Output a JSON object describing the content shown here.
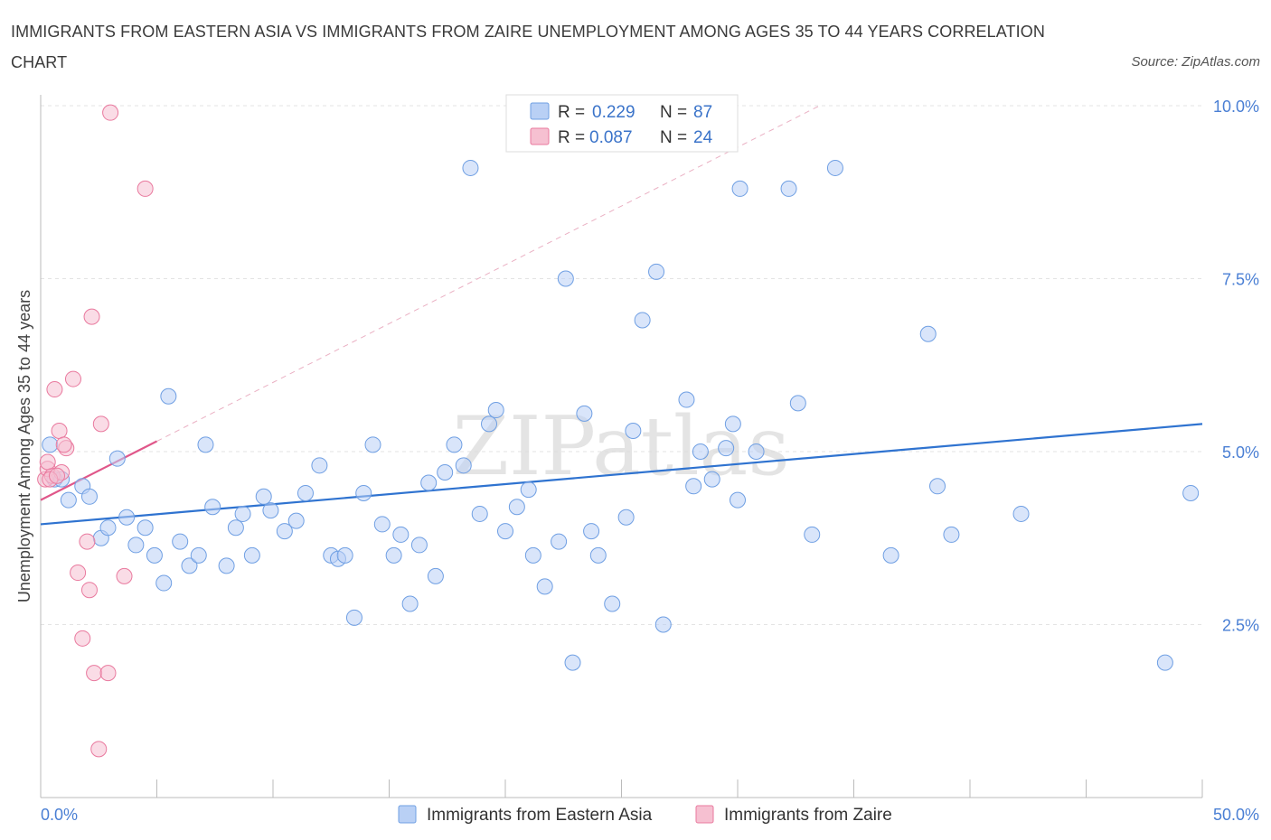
{
  "title": "IMMIGRANTS FROM EASTERN ASIA VS IMMIGRANTS FROM ZAIRE UNEMPLOYMENT AMONG AGES 35 TO 44 YEARS CORRELATION CHART",
  "source": "Source: ZipAtlas.com",
  "watermark": "ZIPatlas",
  "colors": {
    "blue": "#6f9fe3",
    "blue_fill": "#b9d0f5",
    "pink": "#e9799e",
    "pink_fill": "#f6c0d1",
    "blue_line": "#2f73d0",
    "pink_line": "#e0578a"
  },
  "legend": {
    "r_label": "R =",
    "n_label": "N =",
    "rows": [
      {
        "r": "0.229",
        "n": "87"
      },
      {
        "r": "0.087",
        "n": "24"
      }
    ]
  },
  "chart_data": {
    "type": "scatter",
    "xlabel": "",
    "ylabel": "Unemployment Among Ages 35 to 44 years",
    "xlim": [
      0,
      50
    ],
    "ylim": [
      0,
      10
    ],
    "x_tick_labels": [
      "0.0%",
      "50.0%"
    ],
    "y_ticks": [
      2.5,
      5.0,
      7.5,
      10.0
    ],
    "y_tick_labels": [
      "2.5%",
      "5.0%",
      "7.5%",
      "10.0%"
    ],
    "grid": true,
    "legend_position": "top-center",
    "series": [
      {
        "name": "Immigrants from Eastern Asia",
        "trend": {
          "x": [
            0,
            50
          ],
          "y": [
            3.95,
            5.4
          ]
        },
        "points": [
          [
            0.4,
            5.1
          ],
          [
            0.6,
            4.6
          ],
          [
            1.2,
            4.3
          ],
          [
            1.8,
            4.5
          ],
          [
            2.1,
            4.35
          ],
          [
            2.6,
            3.75
          ],
          [
            2.9,
            3.9
          ],
          [
            3.3,
            4.9
          ],
          [
            3.7,
            4.05
          ],
          [
            4.1,
            3.65
          ],
          [
            4.5,
            3.9
          ],
          [
            4.9,
            3.5
          ],
          [
            5.3,
            3.1
          ],
          [
            5.5,
            5.8
          ],
          [
            6.0,
            3.7
          ],
          [
            6.4,
            3.35
          ],
          [
            6.8,
            3.5
          ],
          [
            7.1,
            5.1
          ],
          [
            7.4,
            4.2
          ],
          [
            8.0,
            3.35
          ],
          [
            8.4,
            3.9
          ],
          [
            8.7,
            4.1
          ],
          [
            9.1,
            3.5
          ],
          [
            9.6,
            4.35
          ],
          [
            9.9,
            4.15
          ],
          [
            10.5,
            3.85
          ],
          [
            11.0,
            4.0
          ],
          [
            11.4,
            4.4
          ],
          [
            12.0,
            4.8
          ],
          [
            12.5,
            3.5
          ],
          [
            12.8,
            3.45
          ],
          [
            13.1,
            3.5
          ],
          [
            13.5,
            2.6
          ],
          [
            13.9,
            4.4
          ],
          [
            14.3,
            5.1
          ],
          [
            14.7,
            3.95
          ],
          [
            15.2,
            3.5
          ],
          [
            15.5,
            3.8
          ],
          [
            15.9,
            2.8
          ],
          [
            16.3,
            3.65
          ],
          [
            16.7,
            4.55
          ],
          [
            17.0,
            3.2
          ],
          [
            17.4,
            4.7
          ],
          [
            17.8,
            5.1
          ],
          [
            18.2,
            4.8
          ],
          [
            18.5,
            9.1
          ],
          [
            18.9,
            4.1
          ],
          [
            19.3,
            5.4
          ],
          [
            19.6,
            5.6
          ],
          [
            20.0,
            3.85
          ],
          [
            20.5,
            4.2
          ],
          [
            21.0,
            4.45
          ],
          [
            21.2,
            3.5
          ],
          [
            21.7,
            3.05
          ],
          [
            22.3,
            3.7
          ],
          [
            22.6,
            7.5
          ],
          [
            22.9,
            1.95
          ],
          [
            23.4,
            5.55
          ],
          [
            23.7,
            3.85
          ],
          [
            24.0,
            3.5
          ],
          [
            24.6,
            2.8
          ],
          [
            25.2,
            4.05
          ],
          [
            25.5,
            5.3
          ],
          [
            25.9,
            6.9
          ],
          [
            26.5,
            7.6
          ],
          [
            26.8,
            2.5
          ],
          [
            27.8,
            5.75
          ],
          [
            28.1,
            4.5
          ],
          [
            28.4,
            5.0
          ],
          [
            28.9,
            4.6
          ],
          [
            29.5,
            5.05
          ],
          [
            29.8,
            5.4
          ],
          [
            30.0,
            4.3
          ],
          [
            30.1,
            8.8
          ],
          [
            30.8,
            5.0
          ],
          [
            32.2,
            8.8
          ],
          [
            32.6,
            5.7
          ],
          [
            33.2,
            3.8
          ],
          [
            34.2,
            9.1
          ],
          [
            36.6,
            3.5
          ],
          [
            38.2,
            6.7
          ],
          [
            38.6,
            4.5
          ],
          [
            39.2,
            3.8
          ],
          [
            42.2,
            4.1
          ],
          [
            48.4,
            1.95
          ],
          [
            49.5,
            4.4
          ],
          [
            0.9,
            4.6
          ]
        ]
      },
      {
        "name": "Immigrants from Zaire",
        "trend": {
          "x": [
            0,
            5
          ],
          "y": [
            4.3,
            5.15
          ]
        },
        "points": [
          [
            0.2,
            4.6
          ],
          [
            0.3,
            4.75
          ],
          [
            0.5,
            4.65
          ],
          [
            0.6,
            5.9
          ],
          [
            0.8,
            5.3
          ],
          [
            0.9,
            4.7
          ],
          [
            1.1,
            5.05
          ],
          [
            1.4,
            6.05
          ],
          [
            1.6,
            3.25
          ],
          [
            1.8,
            2.3
          ],
          [
            2.0,
            3.7
          ],
          [
            2.1,
            3.0
          ],
          [
            2.2,
            6.95
          ],
          [
            2.3,
            1.8
          ],
          [
            2.5,
            0.7
          ],
          [
            2.6,
            5.4
          ],
          [
            2.9,
            1.8
          ],
          [
            3.0,
            9.9
          ],
          [
            3.6,
            3.2
          ],
          [
            4.5,
            8.8
          ],
          [
            0.4,
            4.6
          ],
          [
            1.0,
            5.1
          ],
          [
            0.7,
            4.65
          ],
          [
            0.3,
            4.85
          ]
        ]
      }
    ]
  }
}
